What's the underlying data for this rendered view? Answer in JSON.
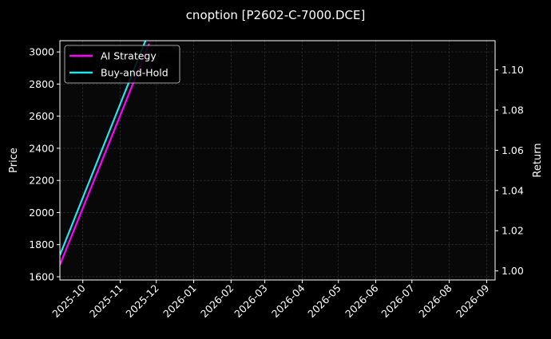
{
  "chart_data": {
    "type": "line",
    "title": "cnoption [P2602-C-7000.DCE]",
    "xlabel": "",
    "ylabel": "Price",
    "ylabel_right": "Return",
    "x_ticks": [
      "2025-10",
      "2025-11",
      "2025-12",
      "2026-01",
      "2026-02",
      "2026-03",
      "2026-04",
      "2026-05",
      "2026-06",
      "2026-07",
      "2026-08",
      "2026-09"
    ],
    "xlim": [
      "2025-09-12",
      "2026-09-08"
    ],
    "ylim": [
      1580,
      3070
    ],
    "ylim_right": [
      0.9955,
      1.1145
    ],
    "y_ticks": [
      1600,
      1800,
      2000,
      2200,
      2400,
      2600,
      2800,
      3000
    ],
    "y_ticks_right": [
      1.0,
      1.02,
      1.04,
      1.06,
      1.08,
      1.1
    ],
    "y_ticks_right_labels": [
      "1.00",
      "1.02",
      "1.04",
      "1.06",
      "1.08",
      "1.10"
    ],
    "grid": true,
    "legend_position": "top-left",
    "series": [
      {
        "name": "AI Strategy",
        "color": "#ff00ff",
        "axis": "right",
        "x": [
          "2025-09-12",
          "2025-11-25"
        ],
        "y": [
          1.003,
          1.113
        ]
      },
      {
        "name": "Buy-and-Hold",
        "color": "#22e5f0",
        "axis": "left",
        "x": [
          "2025-09-12",
          "2025-11-22"
        ],
        "y": [
          1735,
          3070
        ]
      }
    ]
  },
  "colors": {
    "background": "#000000",
    "axes_face": "#080808",
    "text": "#ffffff",
    "grid": "#3a3a3a"
  }
}
